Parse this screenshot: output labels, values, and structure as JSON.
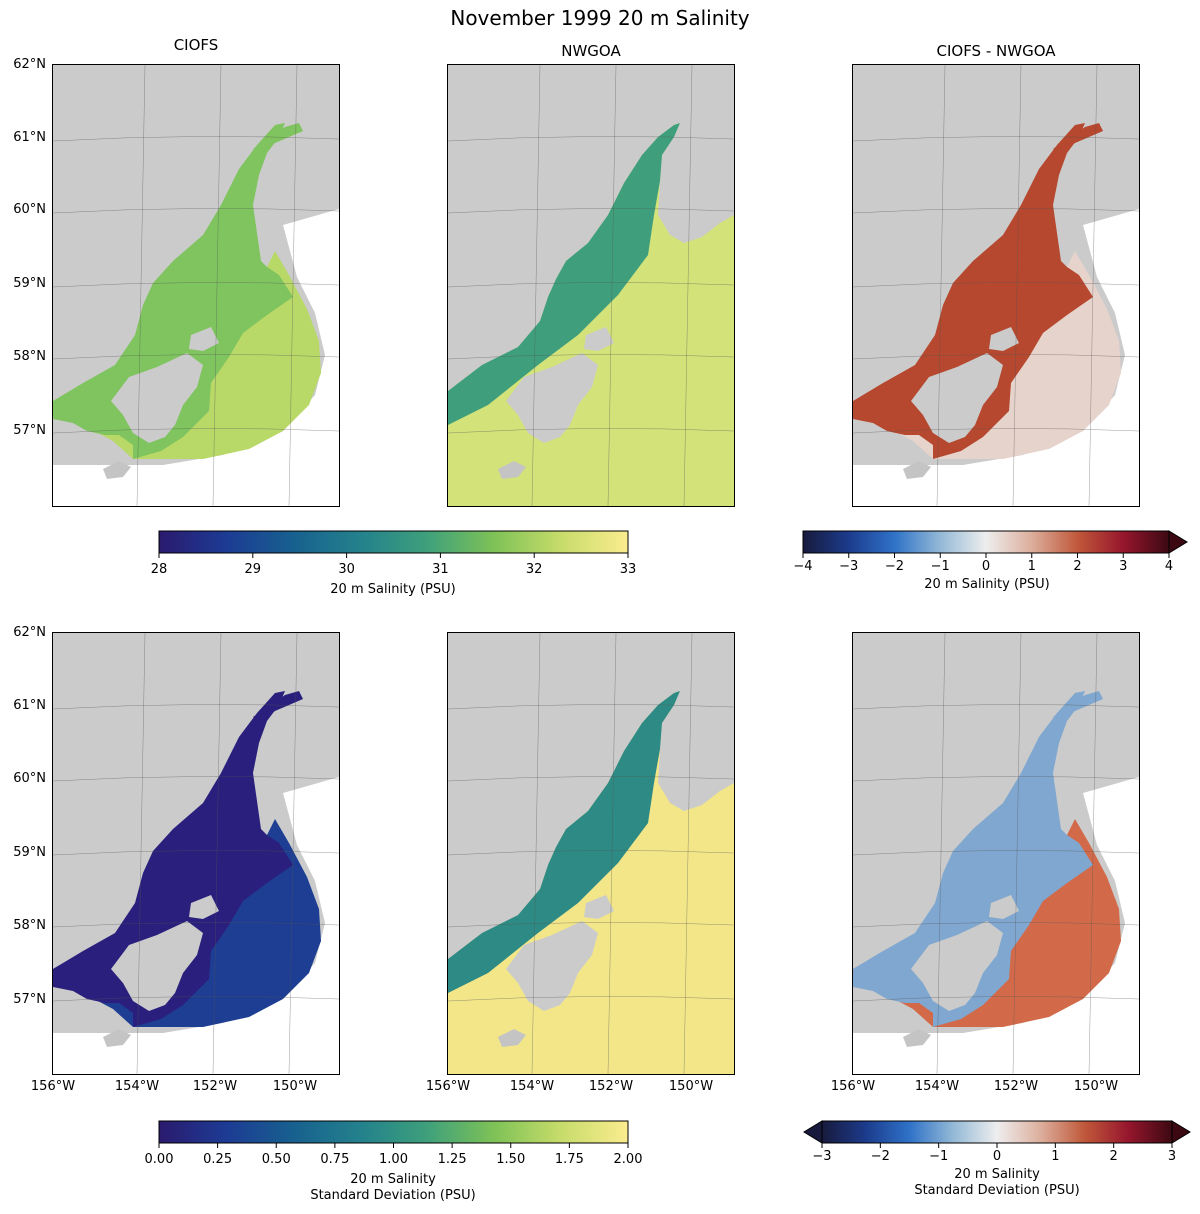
{
  "figure": {
    "title": "November 1999 20 m Salinity",
    "column_titles": [
      "CIOFS",
      "NWGOA",
      "CIOFS - NWGOA"
    ]
  },
  "axes": {
    "lat_labels": [
      "62°N",
      "61°N",
      "60°N",
      "59°N",
      "58°N",
      "57°N"
    ],
    "lon_labels": [
      "156°W",
      "154°W",
      "152°W",
      "150°W"
    ]
  },
  "colorbars": {
    "top_left": {
      "label": "20 m Salinity (PSU)",
      "ticks": [
        "28",
        "29",
        "30",
        "31",
        "32",
        "33"
      ],
      "range": [
        28,
        33
      ],
      "colormap": "haline",
      "colors": [
        "#2a1a6e",
        "#1d3b94",
        "#17608f",
        "#23818c",
        "#3ea07b",
        "#7ec257",
        "#c7dc6a",
        "#fbec8f"
      ]
    },
    "top_right": {
      "label": "20 m Salinity (PSU)",
      "ticks": [
        "−4",
        "−3",
        "−2",
        "−1",
        "0",
        "1",
        "2",
        "3",
        "4"
      ],
      "range": [
        -4,
        4
      ],
      "colormap": "balance",
      "extend": "max",
      "colors": [
        "#171a3c",
        "#1c3b8c",
        "#2f72c8",
        "#93b9d6",
        "#eeeeee",
        "#dcae9c",
        "#c0583a",
        "#96162d",
        "#3c0912"
      ]
    },
    "bottom_left": {
      "label_lines": [
        "20 m Salinity",
        "Standard Deviation (PSU)"
      ],
      "ticks": [
        "0.00",
        "0.25",
        "0.50",
        "0.75",
        "1.00",
        "1.25",
        "1.50",
        "1.75",
        "2.00"
      ],
      "range": [
        0,
        2
      ],
      "colormap": "haline",
      "colors": [
        "#2a1a6e",
        "#1d3b94",
        "#17608f",
        "#23818c",
        "#3ea07b",
        "#7ec257",
        "#c7dc6a",
        "#fbec8f"
      ]
    },
    "bottom_right": {
      "label_lines": [
        "20 m Salinity",
        "Standard Deviation (PSU)"
      ],
      "ticks": [
        "−3",
        "−2",
        "−1",
        "0",
        "1",
        "2",
        "3"
      ],
      "range": [
        -3,
        3
      ],
      "colormap": "balance",
      "extend": "both",
      "colors": [
        "#171a3c",
        "#1c3b8c",
        "#2f72c8",
        "#93b9d6",
        "#eeeeee",
        "#dcae9c",
        "#c0583a",
        "#96162d",
        "#3c0912"
      ]
    }
  },
  "panels": [
    {
      "id": "ciofs-mean",
      "row": 0,
      "col": 0,
      "color": "#7fc45e",
      "accent": "#b8d868"
    },
    {
      "id": "nwgoa-mean",
      "row": 0,
      "col": 1,
      "color": "#3f9f7d",
      "accent": "#d4e27a"
    },
    {
      "id": "diff-mean",
      "row": 0,
      "col": 2,
      "color": "#b5482e",
      "accent": "#e6d3cc"
    },
    {
      "id": "ciofs-std",
      "row": 1,
      "col": 0,
      "color": "#2a1f7c",
      "accent": "#1d3e92"
    },
    {
      "id": "nwgoa-std",
      "row": 1,
      "col": 1,
      "color": "#2e8a84",
      "accent": "#f3e689"
    },
    {
      "id": "diff-std",
      "row": 1,
      "col": 2,
      "color": "#7fa7cf",
      "accent": "#d26a4a"
    }
  ],
  "colors": {
    "land": "#cbcbcb",
    "no_data": "#ffffff",
    "gridline": "#555555"
  }
}
